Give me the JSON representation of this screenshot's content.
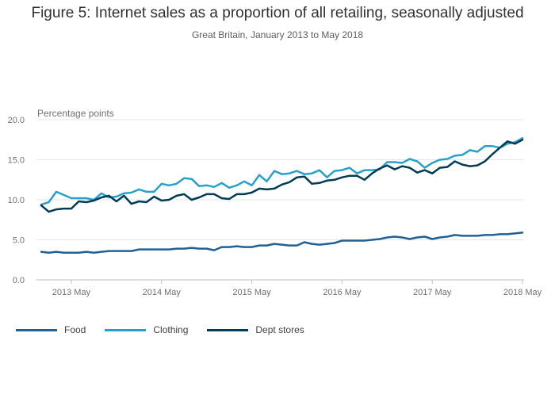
{
  "chart_data": {
    "type": "line",
    "title": "Figure 5: Internet sales as a proportion of all retailing, seasonally adjusted",
    "subtitle": "Great Britain, January 2013 to May 2018",
    "ylabel": "Percentage points",
    "ylim": [
      0,
      20
    ],
    "yticks": [
      "0.0",
      "5.0",
      "10.0",
      "15.0",
      "20.0"
    ],
    "xstart": "Jan 2013",
    "xticks": [
      {
        "label": "2013 May",
        "index": 4
      },
      {
        "label": "2014 May",
        "index": 16
      },
      {
        "label": "2015 May",
        "index": 28
      },
      {
        "label": "2016 May",
        "index": 40
      },
      {
        "label": "2017 May",
        "index": 52
      },
      {
        "label": "2018 May",
        "index": 64
      }
    ],
    "series": [
      {
        "name": "Food",
        "color": "#206095",
        "values": [
          3.5,
          3.4,
          3.5,
          3.4,
          3.4,
          3.4,
          3.5,
          3.4,
          3.5,
          3.6,
          3.6,
          3.6,
          3.6,
          3.8,
          3.8,
          3.8,
          3.8,
          3.8,
          3.9,
          3.9,
          4.0,
          3.9,
          3.9,
          3.7,
          4.1,
          4.1,
          4.2,
          4.1,
          4.1,
          4.3,
          4.3,
          4.5,
          4.4,
          4.3,
          4.3,
          4.7,
          4.5,
          4.4,
          4.5,
          4.6,
          4.9,
          4.9,
          4.9,
          4.9,
          5.0,
          5.1,
          5.3,
          5.4,
          5.3,
          5.1,
          5.3,
          5.4,
          5.1,
          5.3,
          5.4,
          5.6,
          5.5,
          5.5,
          5.5,
          5.6,
          5.6,
          5.7,
          5.7,
          5.8,
          5.9
        ]
      },
      {
        "name": "Clothing",
        "color": "#27a0cc",
        "values": [
          9.4,
          9.7,
          11.0,
          10.6,
          10.2,
          10.2,
          10.2,
          10.0,
          10.8,
          10.3,
          10.4,
          10.8,
          10.9,
          11.3,
          11.0,
          11.0,
          12.0,
          11.8,
          12.0,
          12.7,
          12.6,
          11.7,
          11.8,
          11.6,
          12.1,
          11.5,
          11.8,
          12.3,
          11.8,
          13.1,
          12.3,
          13.6,
          13.2,
          13.3,
          13.6,
          13.2,
          13.3,
          13.7,
          12.8,
          13.6,
          13.7,
          14.0,
          13.3,
          13.7,
          13.7,
          13.8,
          14.7,
          14.7,
          14.6,
          15.1,
          14.8,
          14.0,
          14.6,
          15.0,
          15.1,
          15.5,
          15.6,
          16.2,
          16.0,
          16.7,
          16.7,
          16.5,
          17.0,
          17.2,
          17.7
        ]
      },
      {
        "name": "Dept stores",
        "color": "#003c57",
        "values": [
          9.3,
          8.5,
          8.8,
          8.9,
          8.9,
          9.8,
          9.7,
          9.9,
          10.3,
          10.5,
          9.8,
          10.5,
          9.5,
          9.8,
          9.7,
          10.4,
          9.9,
          10.0,
          10.5,
          10.7,
          10.0,
          10.3,
          10.7,
          10.7,
          10.2,
          10.1,
          10.7,
          10.7,
          10.9,
          11.4,
          11.3,
          11.4,
          11.9,
          12.2,
          12.8,
          12.9,
          12.0,
          12.1,
          12.4,
          12.5,
          12.8,
          13.0,
          13.0,
          12.5,
          13.3,
          13.9,
          14.3,
          13.8,
          14.2,
          14.0,
          13.4,
          13.7,
          13.3,
          14.0,
          14.1,
          14.8,
          14.4,
          14.2,
          14.3,
          14.8,
          15.7,
          16.5,
          17.3,
          17.0,
          17.5
        ]
      }
    ]
  }
}
